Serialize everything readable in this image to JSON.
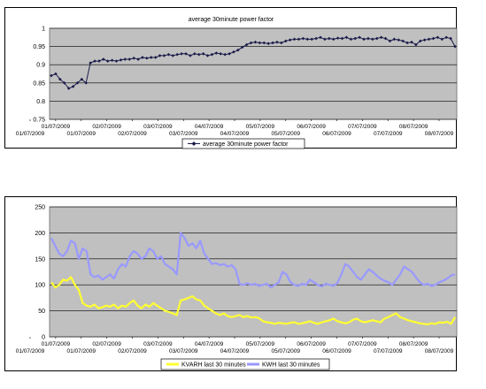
{
  "colors": {
    "plot_bg": "#c0c0c0",
    "grid": "#000000",
    "pf_series": "#1a1a4a",
    "kvarh_series": "#ffff33",
    "kwh_series": "#9999ff"
  },
  "date_tick_labels": [
    "01/07/2009",
    "01/07/2009",
    "01/07/2009",
    "02/07/2009",
    "02/07/2009",
    "03/07/2009",
    "03/07/2009",
    "04/07/2009",
    "04/07/2009",
    "05/07/2009",
    "05/07/2009",
    "06/07/2009",
    "06/07/2009",
    "07/07/2009",
    "07/07/2009",
    "08/07/2009",
    "08/07/2009"
  ],
  "chart_data": [
    {
      "type": "line",
      "title": "average 30minute power factor",
      "xlabel": "",
      "ylabel": "",
      "ylim": [
        0.75,
        1
      ],
      "yticks": [
        0.75,
        0.8,
        0.85,
        0.9,
        0.95,
        1
      ],
      "ytick_labels": [
        "0.75",
        "0.8",
        "0.85",
        "0.9",
        "0.95",
        "1"
      ],
      "x_range": [
        "01/07/2009",
        "08/07/2009"
      ],
      "x_step": "30 minutes",
      "grid": true,
      "legend": "bottom",
      "marker": "diamond",
      "series": [
        {
          "name": "average 30minute power factor",
          "values": [
            0.87,
            0.875,
            0.86,
            0.85,
            0.835,
            0.84,
            0.85,
            0.86,
            0.85,
            0.905,
            0.91,
            0.91,
            0.915,
            0.91,
            0.912,
            0.91,
            0.913,
            0.915,
            0.915,
            0.918,
            0.915,
            0.92,
            0.918,
            0.92,
            0.92,
            0.925,
            0.925,
            0.928,
            0.925,
            0.928,
            0.93,
            0.93,
            0.925,
            0.93,
            0.928,
            0.93,
            0.925,
            0.928,
            0.932,
            0.93,
            0.928,
            0.93,
            0.935,
            0.94,
            0.948,
            0.955,
            0.96,
            0.962,
            0.96,
            0.96,
            0.958,
            0.96,
            0.962,
            0.96,
            0.965,
            0.968,
            0.97,
            0.97,
            0.972,
            0.97,
            0.97,
            0.972,
            0.975,
            0.97,
            0.972,
            0.97,
            0.973,
            0.972,
            0.975,
            0.97,
            0.972,
            0.975,
            0.97,
            0.972,
            0.97,
            0.972,
            0.975,
            0.972,
            0.965,
            0.97,
            0.968,
            0.965,
            0.96,
            0.962,
            0.955,
            0.965,
            0.968,
            0.97,
            0.972,
            0.975,
            0.97,
            0.975,
            0.972,
            0.95
          ]
        }
      ]
    },
    {
      "type": "line",
      "title": "",
      "xlabel": "",
      "ylabel": "",
      "ylim": [
        0,
        250
      ],
      "yticks": [
        0,
        50,
        100,
        150,
        200,
        250
      ],
      "ytick_labels": [
        "0",
        "50",
        "100",
        "150",
        "200",
        "250"
      ],
      "x_range": [
        "01/07/2009",
        "08/07/2009"
      ],
      "x_step": "30 minutes",
      "grid": true,
      "legend": "bottom",
      "series": [
        {
          "name": "KVARH last 30 minutes",
          "values": [
            105,
            95,
            100,
            110,
            108,
            115,
            100,
            90,
            65,
            60,
            58,
            62,
            55,
            57,
            60,
            58,
            62,
            55,
            60,
            58,
            65,
            70,
            60,
            55,
            62,
            58,
            65,
            60,
            55,
            50,
            48,
            45,
            42,
            70,
            72,
            75,
            78,
            72,
            70,
            60,
            55,
            50,
            45,
            42,
            45,
            40,
            38,
            40,
            42,
            38,
            40,
            37,
            38,
            36,
            30,
            28,
            27,
            25,
            27,
            26,
            25,
            27,
            28,
            25,
            26,
            28,
            30,
            27,
            25,
            28,
            30,
            32,
            35,
            30,
            28,
            26,
            28,
            33,
            35,
            30,
            28,
            30,
            32,
            30,
            28,
            35,
            38,
            42,
            45,
            38,
            35,
            32,
            30,
            28,
            26,
            25,
            24,
            26,
            25,
            28,
            27,
            29,
            25,
            38
          ]
        },
        {
          "name": "KWH last 30 minutes",
          "values": [
            190,
            175,
            160,
            155,
            165,
            185,
            180,
            150,
            170,
            165,
            120,
            115,
            118,
            110,
            115,
            120,
            112,
            130,
            140,
            135,
            155,
            165,
            160,
            150,
            155,
            170,
            165,
            150,
            155,
            140,
            135,
            130,
            120,
            200,
            190,
            175,
            180,
            170,
            185,
            160,
            150,
            140,
            142,
            138,
            140,
            135,
            138,
            130,
            102,
            100,
            103,
            100,
            102,
            98,
            100,
            102,
            95,
            100,
            105,
            125,
            120,
            105,
            100,
            98,
            102,
            100,
            110,
            105,
            100,
            97,
            102,
            100,
            98,
            104,
            120,
            140,
            135,
            125,
            115,
            110,
            120,
            130,
            125,
            118,
            112,
            108,
            105,
            100,
            110,
            120,
            135,
            130,
            125,
            115,
            105,
            100,
            102,
            98,
            100,
            105,
            108,
            112,
            118,
            120
          ]
        }
      ]
    }
  ]
}
